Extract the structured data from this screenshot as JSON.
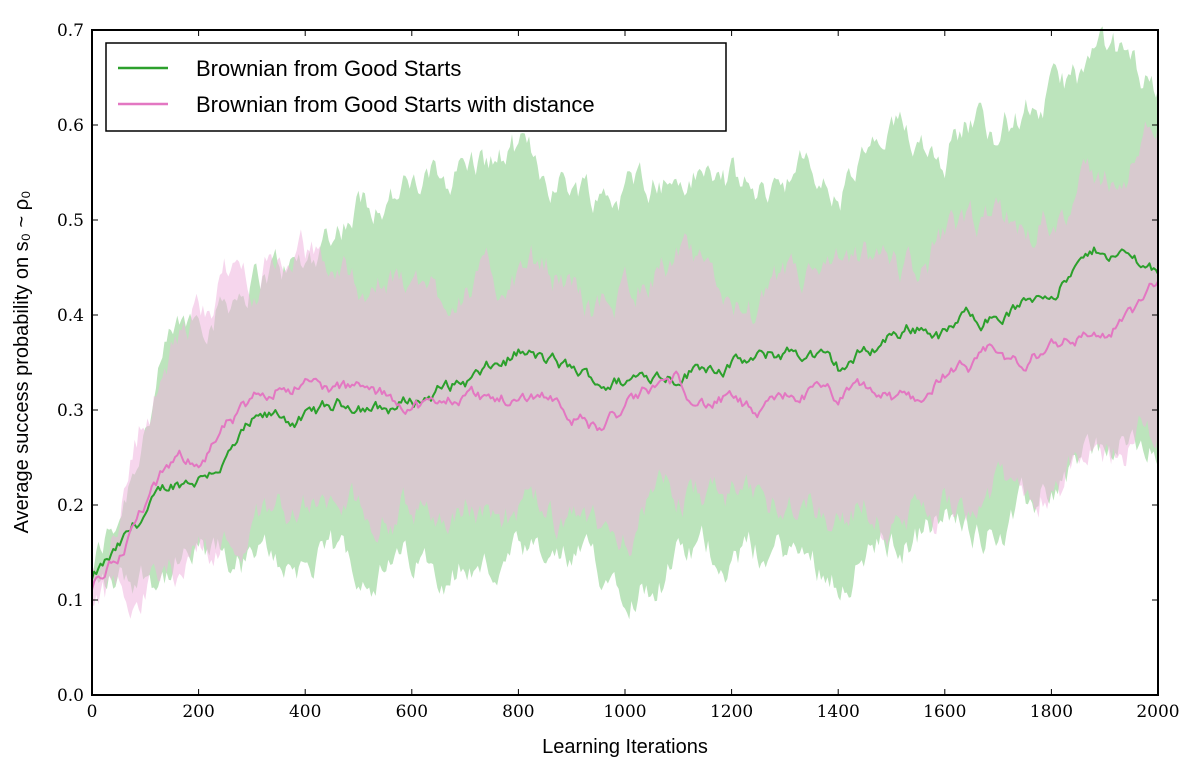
{
  "chart_data": {
    "type": "line",
    "xlabel": "Learning Iterations",
    "ylabel": "Average success probability on s₀ ~ ρ₀",
    "xlim": [
      0,
      2000
    ],
    "ylim": [
      0.0,
      0.7
    ],
    "x_ticks": [
      "0",
      "200",
      "400",
      "600",
      "800",
      "1000",
      "1200",
      "1400",
      "1600",
      "1800",
      "2000"
    ],
    "y_ticks": [
      "0.0",
      "0.1",
      "0.2",
      "0.3",
      "0.4",
      "0.5",
      "0.6",
      "0.7"
    ],
    "grid": false,
    "legend_position": "top-left",
    "series": [
      {
        "name": "Brownian from Good Starts",
        "color": "#2ca02c",
        "band_color": "#a6dba6",
        "x": [
          0,
          50,
          100,
          150,
          200,
          250,
          300,
          350,
          400,
          450,
          500,
          550,
          600,
          650,
          700,
          750,
          800,
          850,
          900,
          950,
          1000,
          1050,
          1100,
          1150,
          1200,
          1250,
          1300,
          1350,
          1400,
          1450,
          1500,
          1550,
          1600,
          1650,
          1700,
          1750,
          1800,
          1850,
          1900,
          1950,
          2000
        ],
        "mean": [
          0.12,
          0.15,
          0.19,
          0.22,
          0.23,
          0.25,
          0.28,
          0.29,
          0.29,
          0.3,
          0.31,
          0.3,
          0.31,
          0.32,
          0.33,
          0.34,
          0.36,
          0.35,
          0.34,
          0.33,
          0.33,
          0.34,
          0.34,
          0.35,
          0.35,
          0.35,
          0.36,
          0.36,
          0.34,
          0.36,
          0.38,
          0.39,
          0.38,
          0.4,
          0.4,
          0.41,
          0.43,
          0.45,
          0.47,
          0.46,
          0.45
        ],
        "lower": [
          0.11,
          0.12,
          0.13,
          0.13,
          0.14,
          0.14,
          0.14,
          0.14,
          0.14,
          0.14,
          0.14,
          0.13,
          0.14,
          0.14,
          0.14,
          0.13,
          0.14,
          0.13,
          0.14,
          0.13,
          0.13,
          0.12,
          0.14,
          0.15,
          0.15,
          0.15,
          0.15,
          0.14,
          0.13,
          0.15,
          0.16,
          0.17,
          0.18,
          0.18,
          0.18,
          0.19,
          0.22,
          0.25,
          0.26,
          0.26,
          0.25
        ],
        "upper": [
          0.13,
          0.19,
          0.29,
          0.37,
          0.4,
          0.42,
          0.44,
          0.45,
          0.45,
          0.49,
          0.52,
          0.53,
          0.53,
          0.54,
          0.56,
          0.56,
          0.57,
          0.55,
          0.54,
          0.53,
          0.53,
          0.55,
          0.54,
          0.55,
          0.54,
          0.52,
          0.55,
          0.55,
          0.52,
          0.56,
          0.58,
          0.59,
          0.58,
          0.61,
          0.6,
          0.61,
          0.63,
          0.65,
          0.67,
          0.66,
          0.64
        ]
      },
      {
        "name": "Brownian from Good Starts with distance",
        "color": "#e377c2",
        "band_color": "#efb4df",
        "x": [
          0,
          50,
          100,
          150,
          200,
          250,
          300,
          350,
          400,
          450,
          500,
          550,
          600,
          650,
          700,
          750,
          800,
          850,
          900,
          950,
          1000,
          1050,
          1100,
          1150,
          1200,
          1250,
          1300,
          1350,
          1400,
          1450,
          1500,
          1550,
          1600,
          1650,
          1700,
          1750,
          1800,
          1850,
          1900,
          1950,
          2000
        ],
        "mean": [
          0.11,
          0.15,
          0.2,
          0.24,
          0.25,
          0.28,
          0.3,
          0.33,
          0.33,
          0.32,
          0.32,
          0.31,
          0.31,
          0.3,
          0.32,
          0.31,
          0.31,
          0.32,
          0.3,
          0.28,
          0.3,
          0.32,
          0.33,
          0.31,
          0.31,
          0.29,
          0.31,
          0.32,
          0.31,
          0.32,
          0.31,
          0.31,
          0.34,
          0.34,
          0.36,
          0.34,
          0.37,
          0.38,
          0.38,
          0.4,
          0.43
        ],
        "lower": [
          0.1,
          0.11,
          0.12,
          0.13,
          0.16,
          0.16,
          0.18,
          0.2,
          0.2,
          0.19,
          0.2,
          0.19,
          0.2,
          0.19,
          0.2,
          0.19,
          0.19,
          0.19,
          0.17,
          0.17,
          0.18,
          0.2,
          0.21,
          0.21,
          0.21,
          0.19,
          0.21,
          0.21,
          0.19,
          0.2,
          0.17,
          0.19,
          0.2,
          0.21,
          0.22,
          0.21,
          0.23,
          0.24,
          0.25,
          0.27,
          0.28
        ],
        "upper": [
          0.12,
          0.2,
          0.3,
          0.36,
          0.4,
          0.44,
          0.44,
          0.46,
          0.46,
          0.45,
          0.44,
          0.43,
          0.43,
          0.42,
          0.44,
          0.43,
          0.44,
          0.45,
          0.43,
          0.4,
          0.43,
          0.45,
          0.46,
          0.43,
          0.42,
          0.4,
          0.43,
          0.44,
          0.44,
          0.45,
          0.45,
          0.45,
          0.48,
          0.48,
          0.5,
          0.48,
          0.51,
          0.53,
          0.54,
          0.56,
          0.6
        ]
      }
    ]
  }
}
